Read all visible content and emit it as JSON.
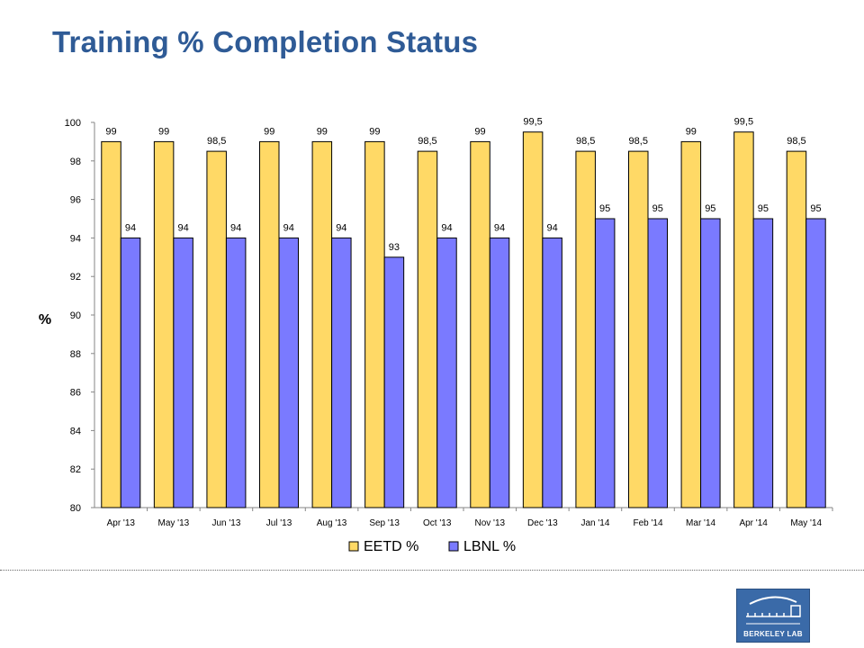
{
  "page": {
    "title": "Training % Completion Status"
  },
  "chart_data": {
    "type": "bar",
    "title": "",
    "xlabel": "",
    "ylabel": "%",
    "ylim": [
      80,
      100
    ],
    "yticks": [
      80,
      82,
      84,
      86,
      88,
      90,
      92,
      94,
      96,
      98,
      100
    ],
    "grid": false,
    "legend_position": "bottom",
    "categories": [
      "Apr '13",
      "May '13",
      "Jun '13",
      "Jul '13",
      "Aug '13",
      "Sep '13",
      "Oct '13",
      "Nov '13",
      "Dec '13",
      "Jan '14",
      "Feb '14",
      "Mar '14",
      "Apr '14",
      "May '14"
    ],
    "series": [
      {
        "name": "EETD %",
        "color": "#ffd966",
        "values": [
          99,
          99,
          98.5,
          99,
          99,
          99,
          98.5,
          99,
          99.5,
          98.5,
          98.5,
          99,
          99.5,
          98.5
        ],
        "labels": [
          "99",
          "99",
          "98,5",
          "99",
          "99",
          "99",
          "98,5",
          "99",
          "99,5",
          "98,5",
          "98,5",
          "99",
          "99,5",
          "98,5"
        ]
      },
      {
        "name": "LBNL %",
        "color": "#7a7aff",
        "values": [
          94,
          94,
          94,
          94,
          94,
          93,
          94,
          94,
          94,
          95,
          95,
          95,
          95,
          95
        ],
        "labels": [
          "94",
          "94",
          "94",
          "94",
          "94",
          "93",
          "94",
          "94",
          "94",
          "95",
          "95",
          "95",
          "95",
          "95"
        ]
      }
    ]
  },
  "logo": {
    "text": "BERKELEY LAB"
  }
}
